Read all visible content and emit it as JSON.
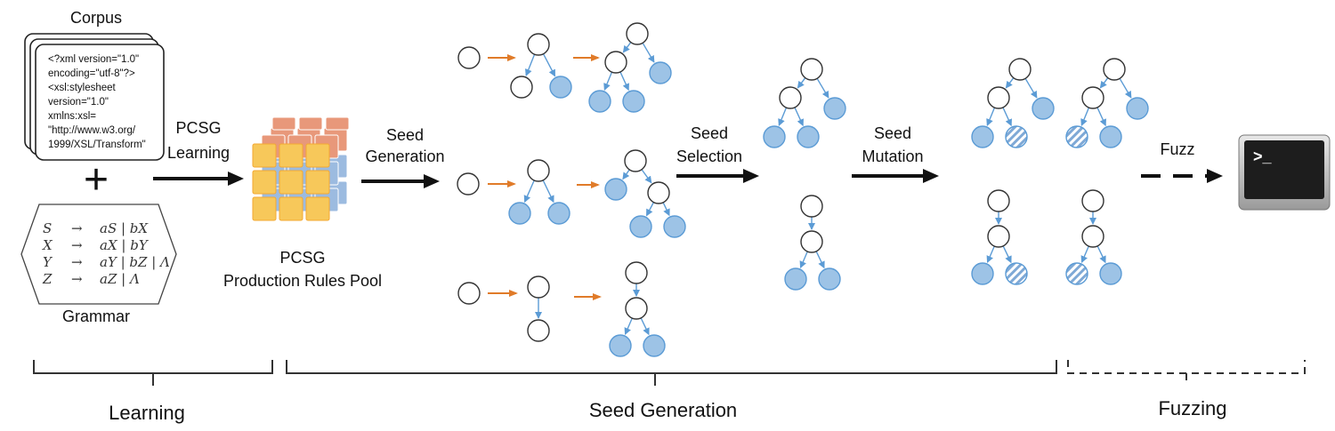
{
  "corpus": {
    "title": "Corpus",
    "lines": [
      "<?xml version=\"1.0\"",
      "encoding=\"utf-8\"?>",
      "<xsl:stylesheet",
      "version=\"1.0\"",
      "xmlns:xsl=",
      "\"http://www.w3.org/",
      "1999/XSL/Transform\""
    ]
  },
  "plus_sign": "+",
  "grammar": {
    "title": "Grammar",
    "rules": [
      {
        "lhs": "S",
        "arrow": "→",
        "rhs": "aS | bX"
      },
      {
        "lhs": "X",
        "arrow": "→",
        "rhs": "aX | bY"
      },
      {
        "lhs": "Y",
        "arrow": "→",
        "rhs": "aY | bZ | Λ"
      },
      {
        "lhs": "Z",
        "arrow": "→",
        "rhs": "aZ | Λ"
      }
    ]
  },
  "steps": {
    "pcsg_learning": [
      "PCSG",
      "Learning"
    ],
    "pool": [
      "PCSG",
      "Production Rules Pool"
    ],
    "seed_generation": [
      "Seed",
      "Generation"
    ],
    "seed_selection": [
      "Seed",
      "Selection"
    ],
    "seed_mutation": [
      "Seed",
      "Mutation"
    ],
    "fuzz": "Fuzz",
    "terminal_prompt": ">_"
  },
  "phases": {
    "learning": "Learning",
    "seed_generation": "Seed Generation",
    "fuzzing": "Fuzzing"
  },
  "colors": {
    "node_fill": "#9dc3e6",
    "node_stroke": "#5b9bd5",
    "orange_arrow": "#e07b29",
    "cube_yellow": "#f7c85a",
    "cube_blue": "#9cbbe0",
    "cube_orange": "#e8987a"
  }
}
